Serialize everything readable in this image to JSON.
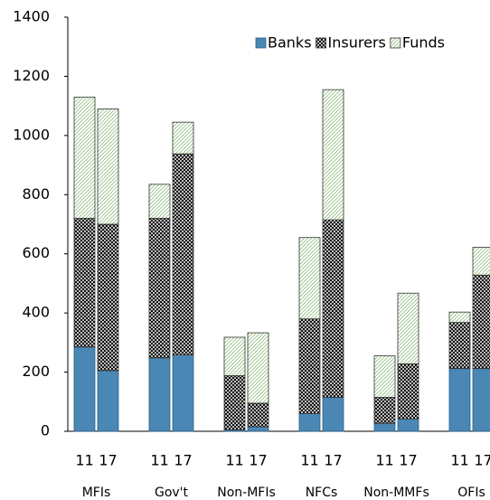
{
  "chart_data": {
    "type": "stacked_bar",
    "categories": [
      "11",
      "17",
      "11",
      "17",
      "11",
      "17",
      "11",
      "17",
      "11",
      "17",
      "11",
      "17"
    ],
    "groups": [
      "MFIs",
      "Gov't",
      "Non-MFIs",
      "NFCs",
      "Non-MMFs",
      "OFIs"
    ],
    "series": [
      {
        "name": "Banks",
        "color": "#4a87b5",
        "pattern": "solid",
        "values": [
          285,
          205,
          248,
          258,
          5,
          15,
          60,
          115,
          27,
          42,
          212,
          212
        ]
      },
      {
        "name": "Insurers",
        "color": "#000000",
        "pattern": "crosshatch",
        "values": [
          435,
          495,
          472,
          680,
          183,
          80,
          320,
          600,
          88,
          186,
          156,
          316
        ]
      },
      {
        "name": "Funds",
        "color": "#7db36a",
        "pattern": "diagonal",
        "values": [
          410,
          390,
          115,
          107,
          130,
          238,
          275,
          440,
          140,
          239,
          35,
          94
        ]
      }
    ],
    "ylim": [
      0,
      1400
    ],
    "yticks": [
      0,
      200,
      400,
      600,
      800,
      1000,
      1200,
      1400
    ],
    "legend": "top-right"
  }
}
